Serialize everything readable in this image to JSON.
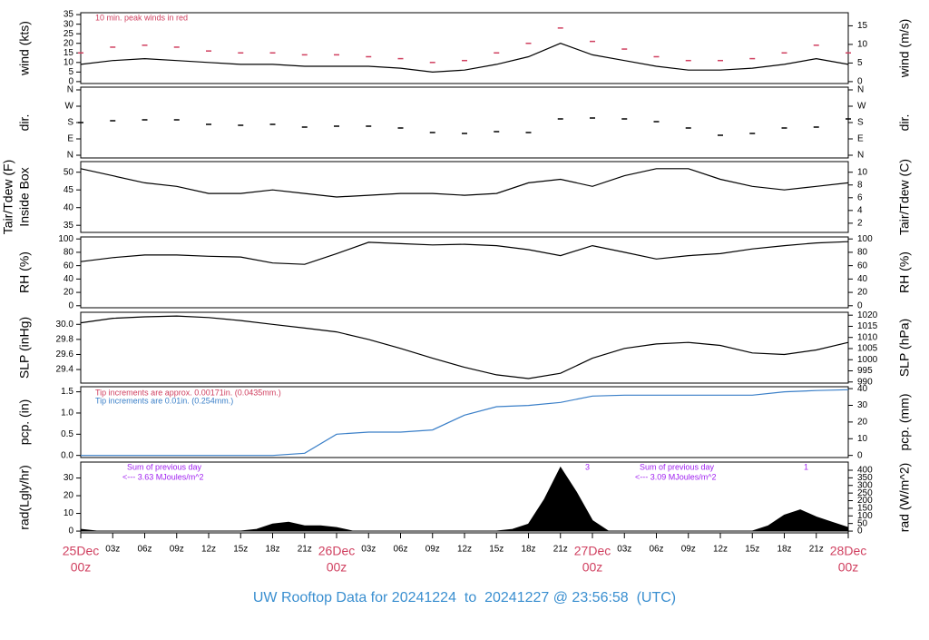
{
  "chart_data": [
    {
      "type": "line",
      "ylabel": [
        "wind (kts)"
      ],
      "y2label": [
        "wind (m/s)"
      ],
      "xlim": [
        0,
        72
      ],
      "ylim": [
        -1,
        36
      ],
      "yticks": [
        0,
        5,
        10,
        15,
        20,
        25,
        30,
        35
      ],
      "y2lim": [
        -0.51,
        18.52
      ],
      "y2ticks": [
        0,
        5,
        10,
        15
      ],
      "annotations": [
        {
          "text": "10 min. peak winds in red",
          "color": "#d04060"
        }
      ],
      "x": [
        0,
        3,
        6,
        9,
        12,
        15,
        18,
        21,
        24,
        27,
        30,
        33,
        36,
        39,
        42,
        45,
        48,
        51,
        54,
        57,
        60,
        63,
        66,
        69,
        72
      ],
      "series": [
        {
          "color": "#000000",
          "values": [
            9,
            11,
            12,
            11,
            10,
            9,
            9,
            8,
            8,
            8,
            7,
            5,
            6,
            9,
            13,
            20,
            14,
            11,
            8,
            6,
            6,
            7,
            9,
            12,
            9
          ]
        },
        {
          "color": "#d04060",
          "mark": "dash",
          "values": [
            15,
            18,
            19,
            18,
            16,
            15,
            15,
            14,
            14,
            13,
            12,
            10,
            11,
            15,
            20,
            28,
            21,
            17,
            13,
            11,
            11,
            12,
            15,
            19,
            15
          ]
        }
      ]
    },
    {
      "type": "scatter",
      "ylabel": [
        "dir."
      ],
      "y2label": [
        "dir."
      ],
      "xlim": [
        0,
        72
      ],
      "ylim": [
        -15,
        375
      ],
      "yticks": [
        {
          "value": 0,
          "label": "N"
        },
        {
          "value": 90,
          "label": "E"
        },
        {
          "value": 180,
          "label": "S"
        },
        {
          "value": 270,
          "label": "W"
        },
        {
          "value": 360,
          "label": "N"
        }
      ],
      "y2lim": [
        -15,
        375
      ],
      "y2ticks": [
        {
          "value": 0,
          "label": "N"
        },
        {
          "value": 90,
          "label": "E"
        },
        {
          "value": 180,
          "label": "S"
        },
        {
          "value": 270,
          "label": "W"
        },
        {
          "value": 360,
          "label": "N"
        }
      ],
      "x": [
        0,
        3,
        6,
        9,
        12,
        15,
        18,
        21,
        24,
        27,
        30,
        33,
        36,
        39,
        42,
        45,
        48,
        51,
        54,
        57,
        60,
        63,
        66,
        69,
        72
      ],
      "series": [
        {
          "color": "#000000",
          "mark": "dash",
          "values": [
            180,
            190,
            195,
            195,
            170,
            165,
            170,
            155,
            160,
            160,
            150,
            125,
            120,
            130,
            125,
            200,
            205,
            200,
            185,
            150,
            110,
            120,
            150,
            155,
            200
          ]
        }
      ]
    },
    {
      "type": "line",
      "ylabel": [
        "Tair/Tdew (F)",
        "Inside Box"
      ],
      "y2label": [
        "Tair/Tdew (C)"
      ],
      "xlim": [
        0,
        72
      ],
      "ylim": [
        33,
        53
      ],
      "yticks": [
        35,
        40,
        45,
        50
      ],
      "y2lim": [
        0.56,
        11.67
      ],
      "y2ticks": [
        2,
        4,
        6,
        8,
        10
      ],
      "x": [
        0,
        3,
        6,
        9,
        12,
        15,
        18,
        21,
        24,
        27,
        30,
        33,
        36,
        39,
        42,
        45,
        48,
        51,
        54,
        57,
        60,
        63,
        66,
        69,
        72
      ],
      "series": [
        {
          "color": "#000000",
          "values": [
            51,
            49,
            47,
            46,
            44,
            44,
            45,
            44,
            43,
            43.5,
            44,
            44,
            43.5,
            44,
            47,
            48,
            46,
            49,
            51,
            51,
            48,
            46,
            45,
            46,
            47
          ]
        }
      ]
    },
    {
      "type": "line",
      "ylabel": [
        "RH (%)"
      ],
      "y2label": [
        "RH (%)"
      ],
      "xlim": [
        0,
        72
      ],
      "ylim": [
        -3,
        103
      ],
      "yticks": [
        0,
        20,
        40,
        60,
        80,
        100
      ],
      "y2lim": [
        -3,
        103
      ],
      "y2ticks": [
        0,
        20,
        40,
        60,
        80,
        100
      ],
      "x": [
        0,
        3,
        6,
        9,
        12,
        15,
        18,
        21,
        24,
        27,
        30,
        33,
        36,
        39,
        42,
        45,
        48,
        51,
        54,
        57,
        60,
        63,
        66,
        69,
        72
      ],
      "series": [
        {
          "color": "#000000",
          "values": [
            66,
            72,
            76,
            76,
            74,
            73,
            64,
            62,
            78,
            95,
            93,
            91,
            92,
            90,
            84,
            75,
            90,
            80,
            70,
            75,
            78,
            85,
            90,
            94,
            96
          ]
        }
      ]
    },
    {
      "type": "line",
      "ylabel": [
        "SLP (inHg)"
      ],
      "y2label": [
        "SLP (hPa)"
      ],
      "xlim": [
        0,
        72
      ],
      "ylim": [
        29.22,
        30.16
      ],
      "yticks": [
        {
          "value": 29.4,
          "label": "29.4"
        },
        {
          "value": 29.6,
          "label": "29.6"
        },
        {
          "value": 29.8,
          "label": "29.8"
        },
        {
          "value": 30,
          "label": "30.0"
        }
      ],
      "y2lim": [
        989.5,
        1021.3
      ],
      "y2ticks": [
        990,
        995,
        1000,
        1005,
        1010,
        1015,
        1020
      ],
      "x": [
        0,
        3,
        6,
        9,
        12,
        15,
        18,
        21,
        24,
        27,
        30,
        33,
        36,
        39,
        42,
        45,
        48,
        51,
        54,
        57,
        60,
        63,
        66,
        69,
        72
      ],
      "series": [
        {
          "color": "#000000",
          "values": [
            30.02,
            30.08,
            30.1,
            30.11,
            30.09,
            30.05,
            30,
            29.95,
            29.9,
            29.8,
            29.68,
            29.55,
            29.43,
            29.33,
            29.28,
            29.35,
            29.55,
            29.68,
            29.74,
            29.76,
            29.72,
            29.62,
            29.6,
            29.66,
            29.76
          ]
        }
      ]
    },
    {
      "type": "line",
      "ylabel": [
        "pcp. (in)"
      ],
      "y2label": [
        "pcp. (mm)"
      ],
      "xlim": [
        0,
        72
      ],
      "ylim": [
        -0.05,
        1.62
      ],
      "yticks": [
        {
          "value": 0,
          "label": "0.0"
        },
        {
          "value": 0.5,
          "label": "0.5"
        },
        {
          "value": 1,
          "label": "1.0"
        },
        {
          "value": 1.5,
          "label": "1.5"
        }
      ],
      "y2lim": [
        -1.27,
        41.15
      ],
      "y2ticks": [
        0,
        10,
        20,
        30,
        40
      ],
      "annotations": [
        {
          "text": "Tip increments are approx. 0.00171in. (0.0435mm.)",
          "color": "#d04060"
        },
        {
          "text": "Tip increments are 0.01in. (0.254mm.)",
          "color": "#3a7fc8"
        }
      ],
      "x": [
        0,
        3,
        6,
        9,
        12,
        15,
        18,
        21,
        24,
        27,
        30,
        33,
        36,
        39,
        42,
        45,
        48,
        51,
        54,
        57,
        60,
        63,
        66,
        69,
        72
      ],
      "series": [
        {
          "color": "#3a7fc8",
          "values": [
            0,
            0,
            0,
            0,
            0,
            0,
            0,
            0.05,
            0.5,
            0.55,
            0.55,
            0.6,
            0.95,
            1.15,
            1.18,
            1.25,
            1.4,
            1.42,
            1.42,
            1.42,
            1.42,
            1.42,
            1.5,
            1.53,
            1.55
          ]
        }
      ]
    },
    {
      "type": "area",
      "ylabel": [
        "rad(Lgly/hr)"
      ],
      "y2label": [
        "rad (W/m^2)"
      ],
      "xlim": [
        0,
        72
      ],
      "ylim": [
        -1,
        39
      ],
      "yticks": [
        0,
        10,
        20,
        30
      ],
      "y2lim": [
        -11.63,
        453.6
      ],
      "y2ticks": [
        0,
        50,
        100,
        150,
        200,
        250,
        300,
        350,
        400
      ],
      "annotations": [
        {
          "text": "Sum of previous day",
          "color": "#a020f0"
        },
        {
          "text": "<--- 3.63 MJoules/m^2",
          "color": "#a020f0"
        },
        {
          "text": "3",
          "color": "#a020f0"
        },
        {
          "text": "Sum of previous day",
          "color": "#a020f0"
        },
        {
          "text": "<--- 3.09 MJoules/m^2",
          "color": "#a020f0"
        },
        {
          "text": "1",
          "color": "#a020f0"
        }
      ],
      "x": [
        0,
        1.5,
        3,
        4.5,
        6,
        7.5,
        9,
        10.5,
        12,
        13.5,
        15,
        16.5,
        18,
        19.5,
        21,
        22.5,
        24,
        25.5,
        27,
        28.5,
        30,
        31.5,
        33,
        34.5,
        36,
        37.5,
        39,
        40.5,
        42,
        43.5,
        45,
        46.5,
        48,
        49.5,
        51,
        52.5,
        54,
        55.5,
        57,
        58.5,
        60,
        61.5,
        63,
        64.5,
        66,
        67.5,
        69,
        70.5,
        72
      ],
      "xticks": [
        {
          "value": 0,
          "label": "25Dec",
          "sublabel": "00z"
        },
        {
          "value": 3,
          "label": "03z"
        },
        {
          "value": 6,
          "label": "06z"
        },
        {
          "value": 9,
          "label": "09z"
        },
        {
          "value": 12,
          "label": "12z"
        },
        {
          "value": 15,
          "label": "15z"
        },
        {
          "value": 18,
          "label": "18z"
        },
        {
          "value": 21,
          "label": "21z"
        },
        {
          "value": 24,
          "label": "26Dec",
          "sublabel": "00z"
        },
        {
          "value": 27,
          "label": "03z"
        },
        {
          "value": 30,
          "label": "06z"
        },
        {
          "value": 33,
          "label": "09z"
        },
        {
          "value": 36,
          "label": "12z"
        },
        {
          "value": 39,
          "label": "15z"
        },
        {
          "value": 42,
          "label": "18z"
        },
        {
          "value": 45,
          "label": "21z"
        },
        {
          "value": 48,
          "label": "27Dec",
          "sublabel": "00z"
        },
        {
          "value": 51,
          "label": "03z"
        },
        {
          "value": 54,
          "label": "06z"
        },
        {
          "value": 57,
          "label": "09z"
        },
        {
          "value": 60,
          "label": "12z"
        },
        {
          "value": 63,
          "label": "15z"
        },
        {
          "value": 66,
          "label": "18z"
        },
        {
          "value": 69,
          "label": "21z"
        },
        {
          "value": 72,
          "label": "28Dec",
          "sublabel": "00z"
        }
      ],
      "series": [
        {
          "color": "#000000",
          "values": [
            1,
            0,
            0,
            0,
            0,
            0,
            0,
            0,
            0,
            0,
            0,
            1,
            4,
            5,
            3,
            3,
            2,
            0,
            0,
            0,
            0,
            0,
            0,
            0,
            0,
            0,
            0,
            1,
            4,
            18,
            36,
            22,
            6,
            0,
            0,
            0,
            0,
            0,
            0,
            0,
            0,
            0,
            0,
            3,
            9,
            12,
            8,
            5,
            2
          ]
        }
      ]
    }
  ],
  "footer": {
    "title": "UW Rooftop Data for 20241224  to  20241227 @ 23:56:58  (UTC)",
    "color": "#3a8fd0",
    "day_color": "#d04060"
  }
}
